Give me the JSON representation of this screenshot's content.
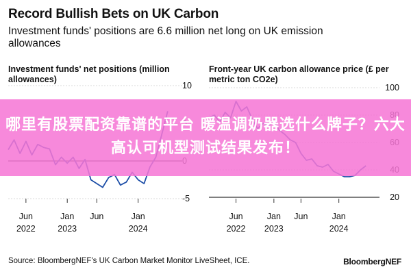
{
  "header": {
    "title": "Record Bullish Bets on UK Carbon",
    "subtitle": "Investment funds' positions are 6.6 million net long on UK emission allowances"
  },
  "overlay": {
    "banner_text": "哪里有股票配资靠谱的平台 暖温调奶器选什么牌子？六大高认可机型测试结果发布！",
    "color": "#f676d5"
  },
  "footer": {
    "source": "Source: BloombergNEF's UK Carbon Market Monitor LiveSheet, ICE.",
    "brand": "BloombergNEF"
  },
  "colors": {
    "line": "#1d4ea7",
    "zero_line": "#333333",
    "grid": "#cccccc"
  },
  "chart_data": [
    {
      "type": "line",
      "title": "Investment funds' net positions (million allowances)",
      "xlabel": "",
      "ylabel": "",
      "ylim": [
        -5,
        10
      ],
      "yticks": [
        10,
        5,
        0,
        -5
      ],
      "xticks": [
        {
          "x": "2022-06",
          "line1": "Jun",
          "line2": "2022"
        },
        {
          "x": "2023-01",
          "line1": "Jan",
          "line2": "2023"
        },
        {
          "x": "2023-06",
          "line1": "Jun",
          "line2": ""
        },
        {
          "x": "2024-01",
          "line1": "Jan",
          "line2": "2024"
        }
      ],
      "series": [
        {
          "x": [
            "2022-03",
            "2022-04",
            "2022-05",
            "2022-06",
            "2022-07",
            "2022-08",
            "2022-09",
            "2022-10",
            "2022-11",
            "2022-12",
            "2023-01",
            "2023-02",
            "2023-03",
            "2023-04",
            "2023-05",
            "2023-06",
            "2023-07",
            "2023-08",
            "2023-09",
            "2023-10",
            "2023-11",
            "2023-12",
            "2024-01",
            "2024-02",
            "2024-03",
            "2024-04",
            "2024-05",
            "2024-06"
          ],
          "values": [
            1.5,
            2.8,
            1.0,
            2.6,
            0.8,
            2.2,
            1.8,
            1.6,
            -0.5,
            0.5,
            -0.3,
            0.5,
            -1.0,
            0.2,
            -2.5,
            -3.0,
            -3.5,
            -2.2,
            -1.8,
            -3.2,
            -2.8,
            -1.5,
            -2.5,
            -3.0,
            -0.8,
            0.5,
            3.5,
            6.6
          ]
        }
      ]
    },
    {
      "type": "line",
      "title": "Front-year UK carbon allowance price (£ per metric ton CO2e)",
      "xlabel": "",
      "ylabel": "",
      "ylim": [
        20,
        100
      ],
      "yticks": [
        100,
        80,
        60,
        40,
        20
      ],
      "xticks": [
        {
          "x": "2022-06",
          "line1": "Jun",
          "line2": "2022"
        },
        {
          "x": "2023-01",
          "line1": "Jan",
          "line2": "2023"
        },
        {
          "x": "2023-06",
          "line1": "Jun",
          "line2": ""
        },
        {
          "x": "2024-01",
          "line1": "Jan",
          "line2": "2024"
        }
      ],
      "series": [
        {
          "x": [
            "2022-01",
            "2022-02",
            "2022-03",
            "2022-04",
            "2022-05",
            "2022-06",
            "2022-07",
            "2022-08",
            "2022-09",
            "2022-10",
            "2022-11",
            "2022-12",
            "2023-01",
            "2023-02",
            "2023-03",
            "2023-04",
            "2023-05",
            "2023-06",
            "2023-07",
            "2023-08",
            "2023-09",
            "2023-10",
            "2023-11",
            "2023-12",
            "2024-01",
            "2024-02",
            "2024-03",
            "2024-04",
            "2024-05",
            "2024-06"
          ],
          "values": [
            78,
            80,
            75,
            82,
            78,
            90,
            83,
            86,
            77,
            70,
            74,
            72,
            75,
            69,
            66,
            62,
            60,
            52,
            47,
            48,
            43,
            42,
            44,
            39,
            37,
            35,
            35,
            36,
            40,
            43
          ]
        }
      ]
    }
  ]
}
